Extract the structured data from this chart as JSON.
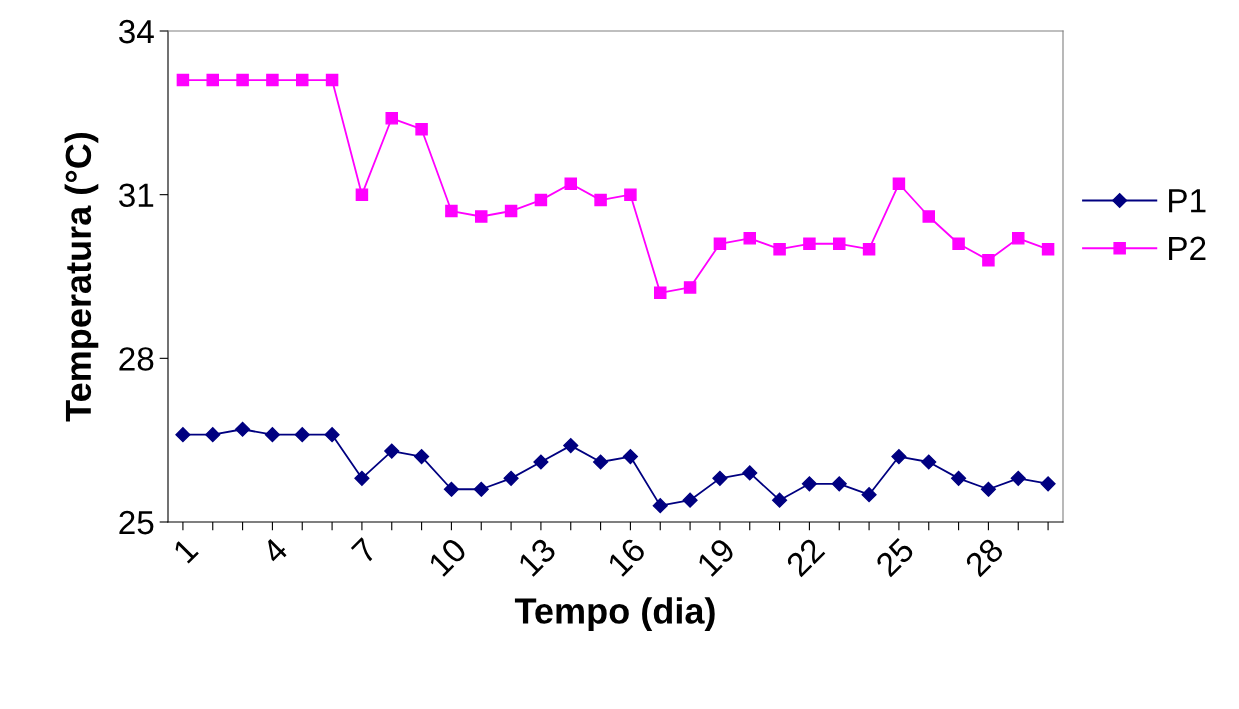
{
  "chart_data": {
    "type": "line",
    "xlabel": "Tempo (dia)",
    "ylabel": "Temperatura (°C)",
    "categories": [
      "1",
      null,
      null,
      "4",
      null,
      null,
      "7",
      null,
      null,
      "10",
      null,
      null,
      "13",
      null,
      null,
      "16",
      null,
      null,
      "19",
      null,
      null,
      "22",
      null,
      null,
      "25",
      null,
      null,
      "28",
      null,
      null
    ],
    "series": [
      {
        "name": "P1",
        "color": "#000080",
        "marker": "diamond",
        "values": [
          26.6,
          26.6,
          26.7,
          26.6,
          26.6,
          26.6,
          25.8,
          26.3,
          26.2,
          25.6,
          25.6,
          25.8,
          26.1,
          26.4,
          26.1,
          26.2,
          25.3,
          25.4,
          25.8,
          25.9,
          25.4,
          25.7,
          25.7,
          25.5,
          26.2,
          26.1,
          25.8,
          25.6,
          25.8,
          25.7
        ]
      },
      {
        "name": "P2",
        "color": "#ff00ff",
        "marker": "square",
        "values": [
          33.1,
          33.1,
          33.1,
          33.1,
          33.1,
          33.1,
          31.0,
          32.4,
          32.2,
          30.7,
          30.6,
          30.7,
          30.9,
          31.2,
          30.9,
          31.0,
          29.2,
          29.3,
          30.1,
          30.2,
          30.0,
          30.1,
          30.1,
          30.0,
          31.2,
          30.6,
          30.1,
          29.8,
          30.2,
          30.0
        ]
      }
    ],
    "ylim": [
      25,
      34
    ],
    "yticks": [
      25,
      28,
      31,
      34
    ],
    "grid": false,
    "legend": "right",
    "line_style": "solid"
  }
}
